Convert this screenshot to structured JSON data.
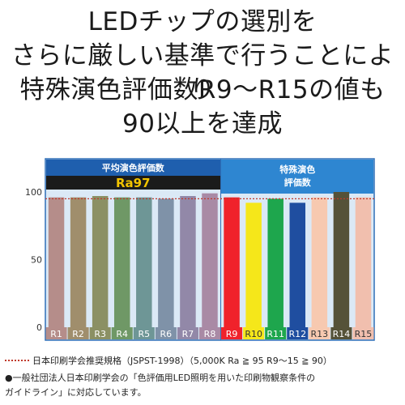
{
  "headline": {
    "line1": "LEDチップの選別を",
    "line2": "さらに厳しい基準で行うことにより",
    "line3": "特殊演色評価数R9～R15の値も",
    "line4": "90以上を達成"
  },
  "chart_data": {
    "type": "bar",
    "groups": [
      {
        "title": "平均演色評価数",
        "badge": "Ra97",
        "categories": [
          "R1",
          "R2",
          "R3",
          "R4",
          "R5",
          "R6",
          "R7",
          "R8"
        ]
      },
      {
        "title_line1": "特殊演色",
        "title_line2": "評価数",
        "categories": [
          "R9",
          "R10",
          "R11",
          "R12",
          "R13",
          "R14",
          "R15"
        ]
      }
    ],
    "categories": [
      "R1",
      "R2",
      "R3",
      "R4",
      "R5",
      "R6",
      "R7",
      "R8",
      "R9",
      "R10",
      "R11",
      "R12",
      "R13",
      "R14",
      "R15"
    ],
    "values": [
      96,
      96,
      97,
      96,
      96,
      95,
      97,
      99,
      96,
      92,
      95,
      92,
      96,
      100,
      96
    ],
    "colors": [
      "#b58d8a",
      "#a08e6c",
      "#8b9064",
      "#6f9866",
      "#6e9696",
      "#7f92a8",
      "#9288a8",
      "#a98aa5",
      "#f0222b",
      "#f5e71a",
      "#1ea64d",
      "#1f4ea0",
      "#f7c9b0",
      "#555238",
      "#f1bfae"
    ],
    "yticks": [
      0,
      50,
      100
    ],
    "ylim": [
      0,
      108
    ],
    "reference_line": 95,
    "grid": false
  },
  "notes": {
    "reference": "日本印刷学会推奨規格（JSPST-1998）（5,000K Ra ≧ 95 R9～15 ≧ 90）",
    "footnote_line1": "●一般社団法人日本印刷学会の「色評価用LED照明を用いた印刷物観察条件の",
    "footnote_line2": "ガイドライン」に対応しています。"
  }
}
